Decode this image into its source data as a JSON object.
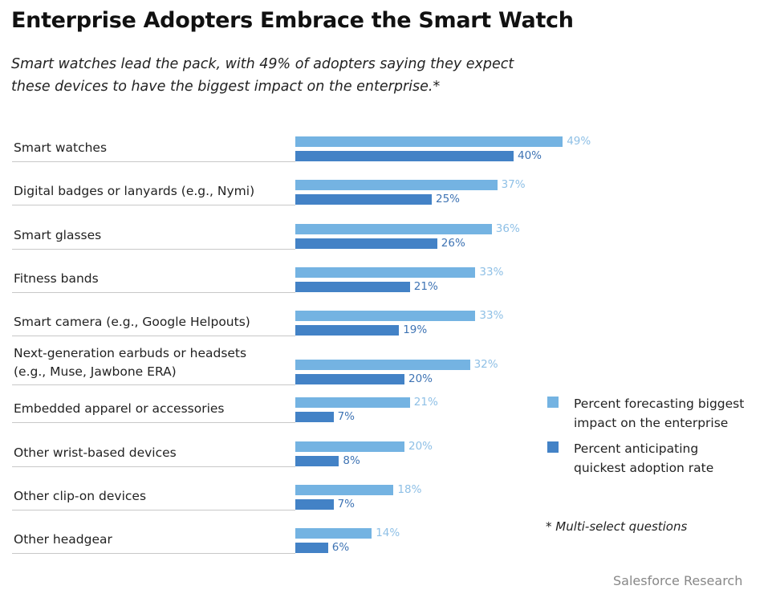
{
  "chart_data": {
    "type": "bar",
    "orientation": "horizontal",
    "title": "Enterprise Adopters Embrace the Smart Watch",
    "subtitle": "Smart watches lead the pack, with 49% of adopters saying they expect these devices to have the biggest impact on the enterprise.*",
    "categories": [
      "Smart watches",
      "Digital badges or lanyards (e.g., Nymi)",
      "Smart glasses",
      "Fitness bands",
      "Smart camera (e.g., Google Helpouts)",
      "Next-generation earbuds or headsets (e.g., Muse, Jawbone ERA)",
      "Embedded apparel or accessories",
      "Other wrist-based devices",
      "Other clip-on devices",
      "Other headgear"
    ],
    "series": [
      {
        "name": "Percent forecasting biggest impact on the enterprise",
        "color": "#74b3e2",
        "label_color": "#8fc0e6",
        "values": [
          49,
          37,
          36,
          33,
          33,
          32,
          21,
          20,
          18,
          14
        ]
      },
      {
        "name": "Percent anticipating quickest adoption rate",
        "color": "#4382c6",
        "label_color": "#3f74b4",
        "values": [
          40,
          25,
          26,
          21,
          19,
          20,
          7,
          8,
          7,
          6
        ]
      }
    ],
    "value_suffix": "%",
    "xlim": [
      0,
      50
    ],
    "grid": false,
    "legend_position": "right",
    "note": "* Multi-select questions",
    "source": "Salesforce Research"
  }
}
